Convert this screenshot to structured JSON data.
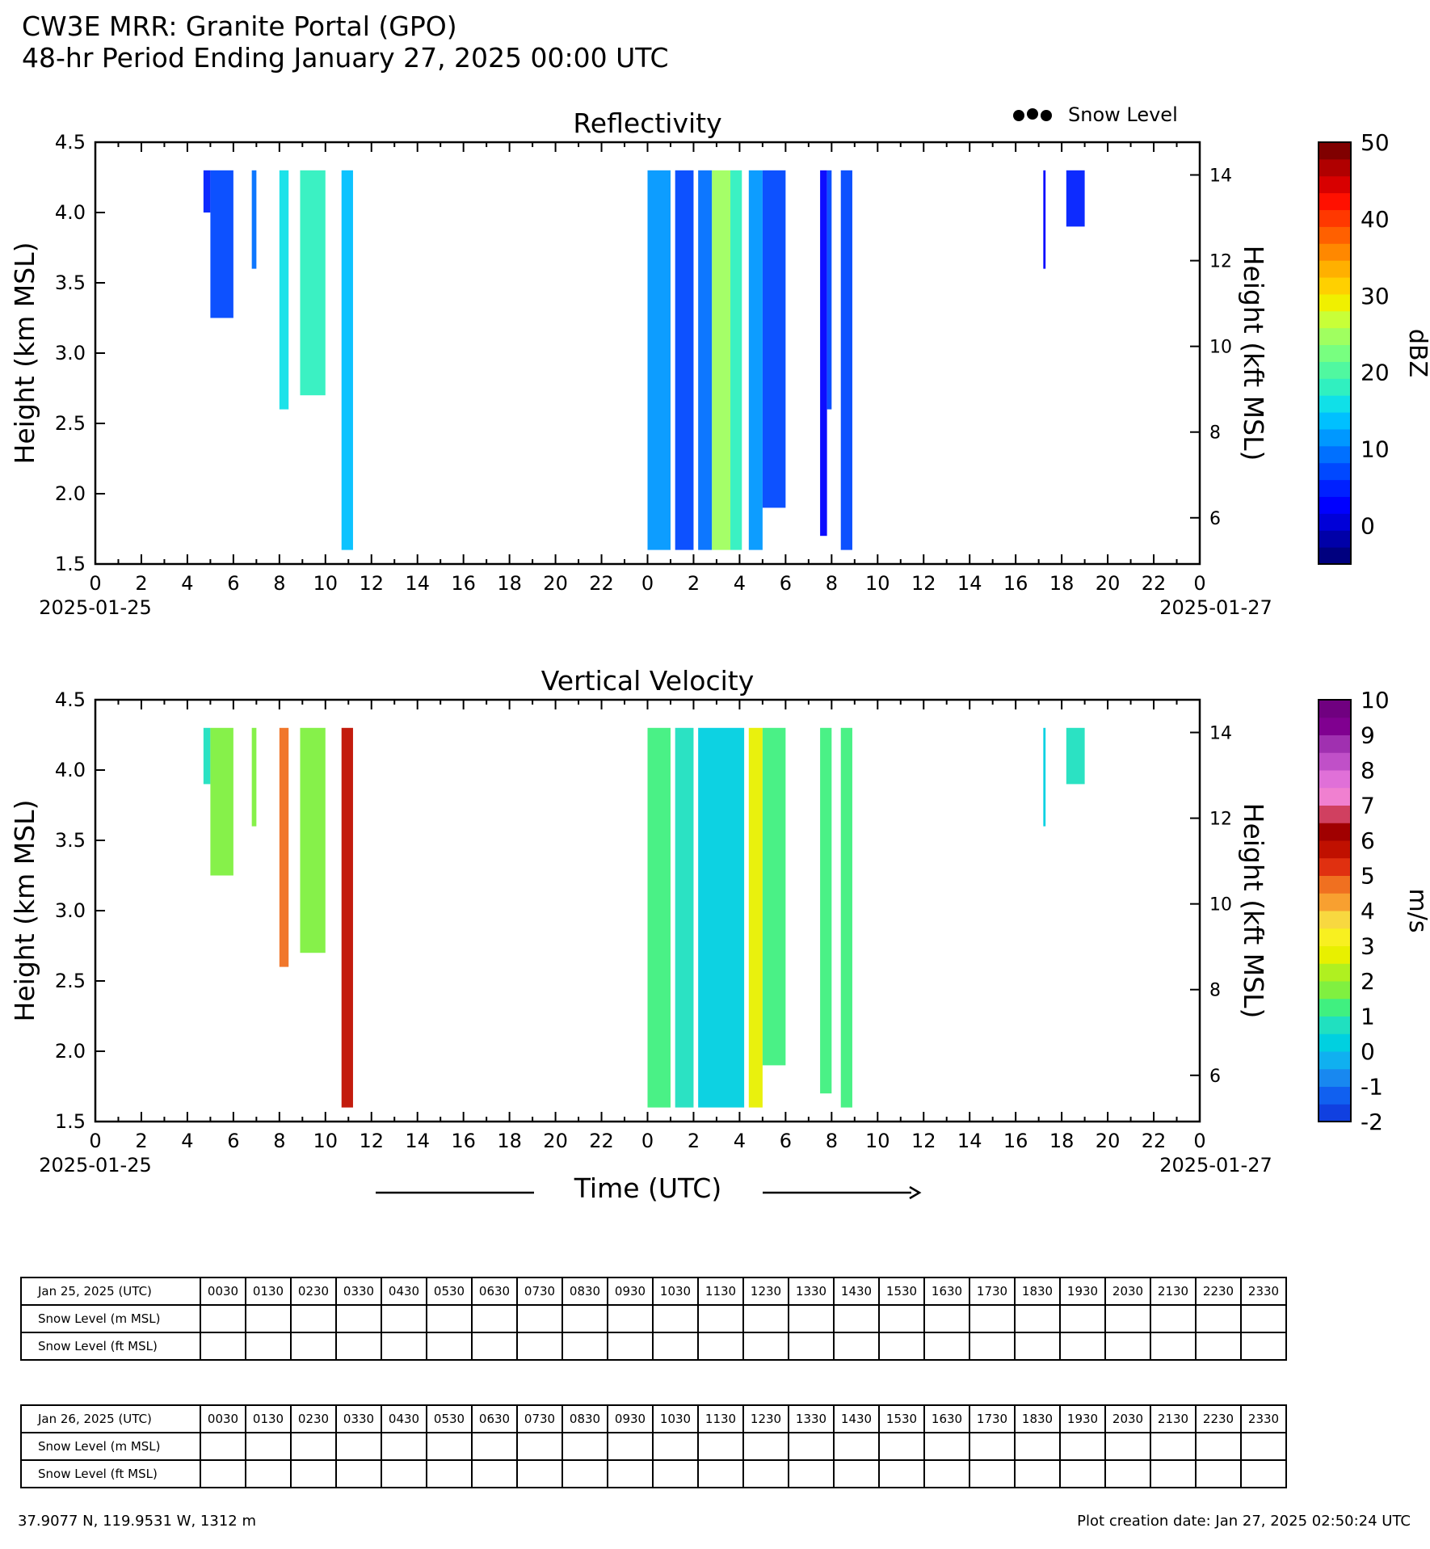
{
  "header": {
    "title_line1": "CW3E MRR: Granite Portal (GPO)",
    "title_line2": "48-hr Period Ending January 27, 2025 00:00 UTC"
  },
  "legend_snow_level": "Snow Level",
  "chart_data": [
    {
      "type": "heatmap",
      "title": "Reflectivity",
      "ylabel": "Height (km MSL)",
      "ylabel_right": "Height (kft MSL)",
      "xlabel": "Time (UTC)",
      "ylim": [
        1.5,
        4.5
      ],
      "yticks": [
        "1.5",
        "2.0",
        "2.5",
        "3.0",
        "3.5",
        "4.0",
        "4.5"
      ],
      "yticks_right": [
        "6",
        "8",
        "10",
        "12",
        "14"
      ],
      "xticks": [
        "0",
        "2",
        "4",
        "6",
        "8",
        "10",
        "12",
        "14",
        "16",
        "18",
        "20",
        "22",
        "0",
        "2",
        "4",
        "6",
        "8",
        "10",
        "12",
        "14",
        "16",
        "18",
        "20",
        "22",
        "0"
      ],
      "xdate_start": "2025-01-25",
      "xdate_end": "2025-01-27",
      "colorbar": {
        "label": "dBZ",
        "range": [
          -5,
          50
        ],
        "ticks": [
          "0",
          "10",
          "20",
          "30",
          "40",
          "50"
        ],
        "colors": [
          "#00007f",
          "#0000a8",
          "#0000d8",
          "#0000ff",
          "#0020ff",
          "#0048ff",
          "#0070ff",
          "#0098ff",
          "#00c0ff",
          "#10e0e8",
          "#30f0c0",
          "#50f8a0",
          "#78ff80",
          "#a0ff60",
          "#c8ff38",
          "#f0f000",
          "#ffd000",
          "#ffb000",
          "#ff8800",
          "#ff6000",
          "#ff3800",
          "#ff1000",
          "#d80000",
          "#b00000",
          "#800000"
        ]
      },
      "echo_segments": [
        {
          "t_start": 4.7,
          "t_end": 5.0,
          "h_bottom": 4.0,
          "value": 5
        },
        {
          "t_start": 5.0,
          "t_end": 6.0,
          "h_bottom": 3.25,
          "value": 8
        },
        {
          "t_start": 6.8,
          "t_end": 7.0,
          "h_bottom": 3.6,
          "value": 10
        },
        {
          "t_start": 8.0,
          "t_end": 8.4,
          "h_bottom": 2.6,
          "value": 15
        },
        {
          "t_start": 8.9,
          "t_end": 10.0,
          "h_bottom": 2.7,
          "value": 18
        },
        {
          "t_start": 10.7,
          "t_end": 11.2,
          "h_bottom": 1.6,
          "value": 14
        },
        {
          "t_start": 24.0,
          "t_end": 25.0,
          "h_bottom": 1.6,
          "value": 12
        },
        {
          "t_start": 25.2,
          "t_end": 26.0,
          "h_bottom": 1.6,
          "value": 8
        },
        {
          "t_start": 26.2,
          "t_end": 26.8,
          "h_bottom": 1.6,
          "value": 10
        },
        {
          "t_start": 26.8,
          "t_end": 27.6,
          "h_bottom": 1.6,
          "value": 24
        },
        {
          "t_start": 27.6,
          "t_end": 28.1,
          "h_bottom": 1.6,
          "value": 18
        },
        {
          "t_start": 28.4,
          "t_end": 29.0,
          "h_bottom": 1.6,
          "value": 12
        },
        {
          "t_start": 29.0,
          "t_end": 30.0,
          "h_bottom": 1.9,
          "value": 6
        },
        {
          "t_start": 31.5,
          "t_end": 31.8,
          "h_bottom": 1.7,
          "value": 3
        },
        {
          "t_start": 31.8,
          "t_end": 32.0,
          "h_bottom": 2.6,
          "value": 6
        },
        {
          "t_start": 32.4,
          "t_end": 32.9,
          "h_bottom": 1.6,
          "value": 8
        },
        {
          "t_start": 41.2,
          "t_end": 41.3,
          "h_bottom": 3.6,
          "value": 3
        },
        {
          "t_start": 42.2,
          "t_end": 43.0,
          "h_bottom": 3.9,
          "value": 5
        }
      ]
    },
    {
      "type": "heatmap",
      "title": "Vertical Velocity",
      "ylabel": "Height (km MSL)",
      "ylabel_right": "Height (kft MSL)",
      "xlabel": "Time (UTC)",
      "ylim": [
        1.5,
        4.5
      ],
      "yticks": [
        "1.5",
        "2.0",
        "2.5",
        "3.0",
        "3.5",
        "4.0",
        "4.5"
      ],
      "yticks_right": [
        "6",
        "8",
        "10",
        "12",
        "14"
      ],
      "xticks": [
        "0",
        "2",
        "4",
        "6",
        "8",
        "10",
        "12",
        "14",
        "16",
        "18",
        "20",
        "22",
        "0",
        "2",
        "4",
        "6",
        "8",
        "10",
        "12",
        "14",
        "16",
        "18",
        "20",
        "22",
        "0"
      ],
      "xdate_start": "2025-01-25",
      "xdate_end": "2025-01-27",
      "colorbar": {
        "label": "m/s",
        "range": [
          -2,
          10
        ],
        "ticks": [
          "-2",
          "-1",
          "0",
          "1",
          "2",
          "3",
          "4",
          "5",
          "6",
          "7",
          "8",
          "9",
          "10"
        ],
        "colors": [
          "#1040e0",
          "#1060f0",
          "#1888f0",
          "#10b0f0",
          "#00d0e0",
          "#20e0c0",
          "#40f080",
          "#80f040",
          "#b0f020",
          "#e8f000",
          "#f8f020",
          "#f8d840",
          "#f8a030",
          "#f07020",
          "#e03010",
          "#c01000",
          "#a00000",
          "#d04060",
          "#f080d0",
          "#e070d8",
          "#c050c8",
          "#a030b0",
          "#800090",
          "#700080"
        ]
      },
      "echo_segments": [
        {
          "t_start": 4.7,
          "t_end": 5.0,
          "h_bottom": 3.9,
          "value": 0.8
        },
        {
          "t_start": 5.0,
          "t_end": 6.0,
          "h_bottom": 3.25,
          "value": 1.8
        },
        {
          "t_start": 6.8,
          "t_end": 7.0,
          "h_bottom": 3.6,
          "value": 1.5
        },
        {
          "t_start": 8.0,
          "t_end": 8.4,
          "h_bottom": 2.6,
          "value": 4.5
        },
        {
          "t_start": 8.9,
          "t_end": 10.0,
          "h_bottom": 2.7,
          "value": 1.5
        },
        {
          "t_start": 10.7,
          "t_end": 11.2,
          "h_bottom": 1.6,
          "value": 5.5
        },
        {
          "t_start": 24.0,
          "t_end": 25.0,
          "h_bottom": 1.6,
          "value": 1.0
        },
        {
          "t_start": 25.2,
          "t_end": 26.0,
          "h_bottom": 1.6,
          "value": 0.5
        },
        {
          "t_start": 26.2,
          "t_end": 28.2,
          "h_bottom": 1.6,
          "value": 0.2
        },
        {
          "t_start": 28.4,
          "t_end": 29.0,
          "h_bottom": 1.6,
          "value": 2.8
        },
        {
          "t_start": 29.0,
          "t_end": 30.0,
          "h_bottom": 1.9,
          "value": 1.0
        },
        {
          "t_start": 31.5,
          "t_end": 32.0,
          "h_bottom": 1.7,
          "value": 1.2
        },
        {
          "t_start": 32.4,
          "t_end": 32.9,
          "h_bottom": 1.6,
          "value": 1.4
        },
        {
          "t_start": 41.2,
          "t_end": 41.3,
          "h_bottom": 3.6,
          "value": 0.4
        },
        {
          "t_start": 42.2,
          "t_end": 43.0,
          "h_bottom": 3.9,
          "value": 0.6
        }
      ]
    }
  ],
  "tables": [
    {
      "date_label": "Jan 25, 2025 (UTC)",
      "times": [
        "0030",
        "0130",
        "0230",
        "0330",
        "0430",
        "0530",
        "0630",
        "0730",
        "0830",
        "0930",
        "1030",
        "1130",
        "1230",
        "1330",
        "1430",
        "1530",
        "1630",
        "1730",
        "1830",
        "1930",
        "2030",
        "2130",
        "2230",
        "2330"
      ],
      "rows": [
        {
          "label": "Snow Level (m MSL)",
          "values": []
        },
        {
          "label": "Snow Level (ft MSL)",
          "values": []
        }
      ]
    },
    {
      "date_label": "Jan 26, 2025 (UTC)",
      "times": [
        "0030",
        "0130",
        "0230",
        "0330",
        "0430",
        "0530",
        "0630",
        "0730",
        "0830",
        "0930",
        "1030",
        "1130",
        "1230",
        "1330",
        "1430",
        "1530",
        "1630",
        "1730",
        "1830",
        "1930",
        "2030",
        "2130",
        "2230",
        "2330"
      ],
      "rows": [
        {
          "label": "Snow Level (m MSL)",
          "values": []
        },
        {
          "label": "Snow Level (ft MSL)",
          "values": []
        }
      ]
    }
  ],
  "footer": {
    "coords": "37.9077 N, 119.9531 W, 1312 m",
    "creation_date": "Plot creation date: Jan 27, 2025 02:50:24 UTC"
  }
}
